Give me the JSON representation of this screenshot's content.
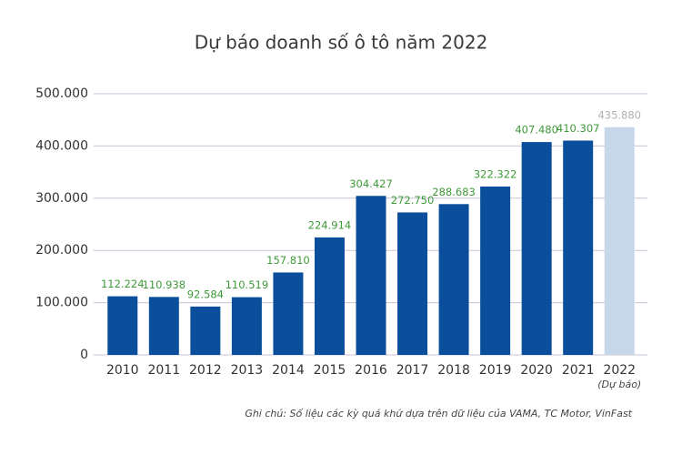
{
  "chart_data": {
    "type": "bar",
    "title": "Dự báo doanh số ô tô năm 2022",
    "categories": [
      "2010",
      "2011",
      "2012",
      "2013",
      "2014",
      "2015",
      "2016",
      "2017",
      "2018",
      "2019",
      "2020",
      "2021",
      "2022"
    ],
    "category_note": "(Dự báo)",
    "values": [
      112224,
      110938,
      92584,
      110519,
      157810,
      224914,
      304427,
      272750,
      288683,
      322322,
      407480,
      410307,
      435880
    ],
    "value_labels": [
      "112.224",
      "110.938",
      "92.584",
      "110.519",
      "157.810",
      "224.914",
      "304.427",
      "272.750",
      "288.683",
      "322.322",
      "407.480",
      "410.307",
      "435.880"
    ],
    "colors": [
      "#0b4f9c",
      "#0b4f9c",
      "#0b4f9c",
      "#0b4f9c",
      "#0b4f9c",
      "#0b4f9c",
      "#0b4f9c",
      "#0b4f9c",
      "#0b4f9c",
      "#0b4f9c",
      "#0b4f9c",
      "#0b4f9c",
      "#c6d7ea"
    ],
    "value_label_colors": [
      "#3f9a3a",
      "#3f9a3a",
      "#3f9a3a",
      "#3f9a3a",
      "#3f9a3a",
      "#3f9a3a",
      "#3f9a3a",
      "#3f9a3a",
      "#3f9a3a",
      "#3f9a3a",
      "#3f9a3a",
      "#3f9a3a",
      "#b0b0b0"
    ],
    "ylim": [
      0,
      500000
    ],
    "yticks": [
      0,
      {
        "value": 100000,
        "label": "100.000"
      },
      {
        "value": 200000,
        "label": "200.000"
      },
      {
        "value": 300000,
        "label": "300.000"
      },
      {
        "value": 400000,
        "label": "400.000"
      },
      {
        "value": 500000,
        "label": "500.000"
      }
    ],
    "grid": true,
    "note": "Ghi chú: Số liệu các kỳ quá khứ dựa trên dữ liệu của VAMA, TC Motor, VinFast"
  }
}
